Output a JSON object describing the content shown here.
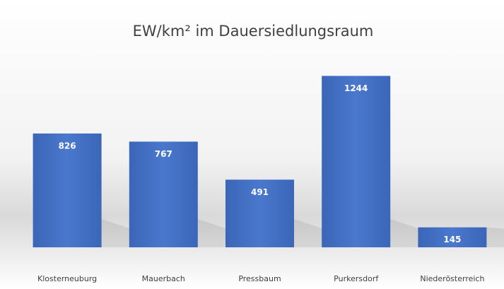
{
  "chart_data": {
    "type": "bar",
    "title": "EW/km² im Dauersiedlungsraum",
    "categories": [
      "Klosterneuburg",
      "Mauerbach",
      "Pressbaum",
      "Purkersdorf",
      "Niederösterreich"
    ],
    "values": [
      826,
      767,
      491,
      1244,
      145
    ],
    "color": "#4472c4"
  }
}
